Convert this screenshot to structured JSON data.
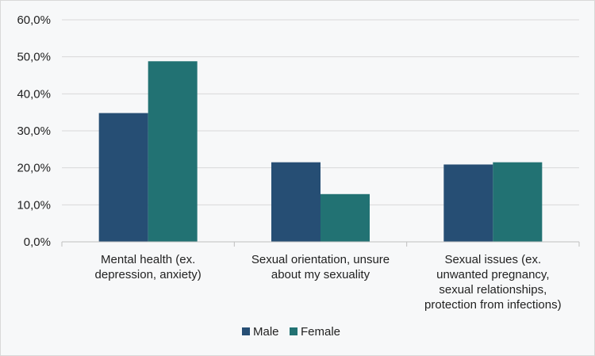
{
  "chart_data": {
    "type": "bar",
    "categories": [
      [
        "Mental health (ex.",
        "depression, anxiety)"
      ],
      [
        "Sexual orientation, unsure",
        "about my sexuality"
      ],
      [
        "Sexual issues (ex.",
        "unwanted pregnancy,",
        "sexual relationships,",
        "protection from infections)"
      ]
    ],
    "series": [
      {
        "name": "Male",
        "values": [
          34.8,
          21.5,
          20.9
        ],
        "color": "#264e74"
      },
      {
        "name": "Female",
        "values": [
          48.8,
          12.9,
          21.5
        ],
        "color": "#227273"
      }
    ],
    "ylim": [
      0,
      60
    ],
    "yticks": [
      0,
      10,
      20,
      30,
      40,
      50,
      60
    ],
    "ytick_labels": [
      "0,0%",
      "10,0%",
      "20,0%",
      "30,0%",
      "40,0%",
      "50,0%",
      "60,0%"
    ],
    "grid": true,
    "legend_position": "bottom",
    "title": "",
    "xlabel": "",
    "ylabel": ""
  }
}
